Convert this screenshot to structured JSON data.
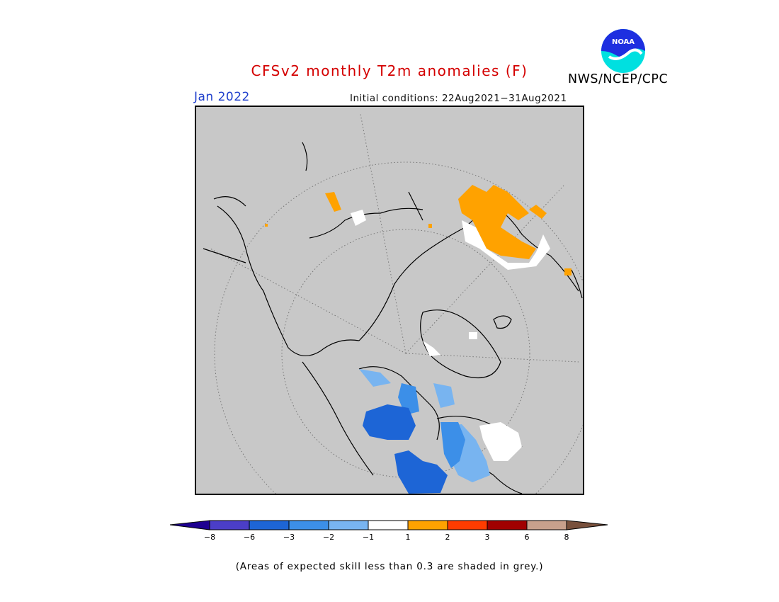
{
  "header": {
    "title": "CFSv2 monthly T2m anomalies (F)",
    "month": "Jan 2022",
    "initial_conditions": "Initial conditions: 22Aug2021−31Aug2021",
    "agency": "NWS/NCEP/CPC",
    "logo_text": "NOAA"
  },
  "legend": {
    "ticks": [
      "−8",
      "−6",
      "−3",
      "−2",
      "−1",
      "1",
      "2",
      "3",
      "6",
      "8"
    ],
    "colors": {
      "below_min": "#1e0091",
      "c_m8_m6": "#4b3ec8",
      "c_m6_m3": "#1d65d6",
      "c_m3_m2": "#3c8fe8",
      "c_m2_m1": "#78b4f0",
      "c_m1_1": "#ffffff",
      "c_1_2": "#ffa200",
      "c_2_3": "#ff3c00",
      "c_3_6": "#a00000",
      "c_6_8": "#c8a08c",
      "above_max": "#78503c"
    }
  },
  "footnote": "(Areas of expected skill less than 0.3 are shaded in grey.)",
  "map": {
    "background_color": "#c8c8c8",
    "projection": "north polar stereographic"
  }
}
